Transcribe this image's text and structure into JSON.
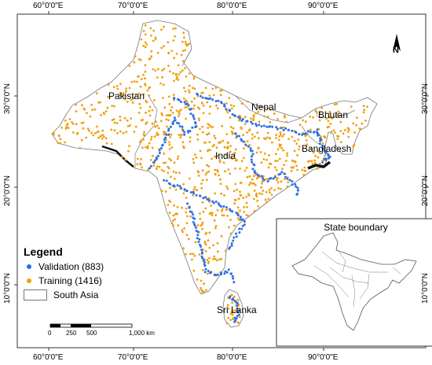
{
  "map": {
    "countries": {
      "pakistan": "Pakistan",
      "india": "India",
      "nepal": "Nepal",
      "bhutan": "Bhutan",
      "bangladesh": "Bangladesh",
      "sri_lanka": "Sri Lanka"
    },
    "longitude_ticks": [
      "60°0'0\"E",
      "70°0'0\"E",
      "80°0'0\"E",
      "90°0'0\"E"
    ],
    "latitude_ticks": [
      "30°0'0\"N",
      "20°0'0\"N",
      "10°0'0\"N"
    ],
    "north_arrow": "N",
    "legend": {
      "title": "Legend",
      "validation": "Validation (883)",
      "training": "Training (1416)",
      "south_asia": "South Asia"
    },
    "scale_bar": {
      "labels": [
        "0",
        "250",
        "500",
        "1,000 km"
      ]
    },
    "inset": {
      "title": "State boundary"
    },
    "colors": {
      "validation": "#2e6fe8",
      "training": "#f0a010",
      "boundary": "#777777",
      "coast_dark": "#111111"
    }
  }
}
